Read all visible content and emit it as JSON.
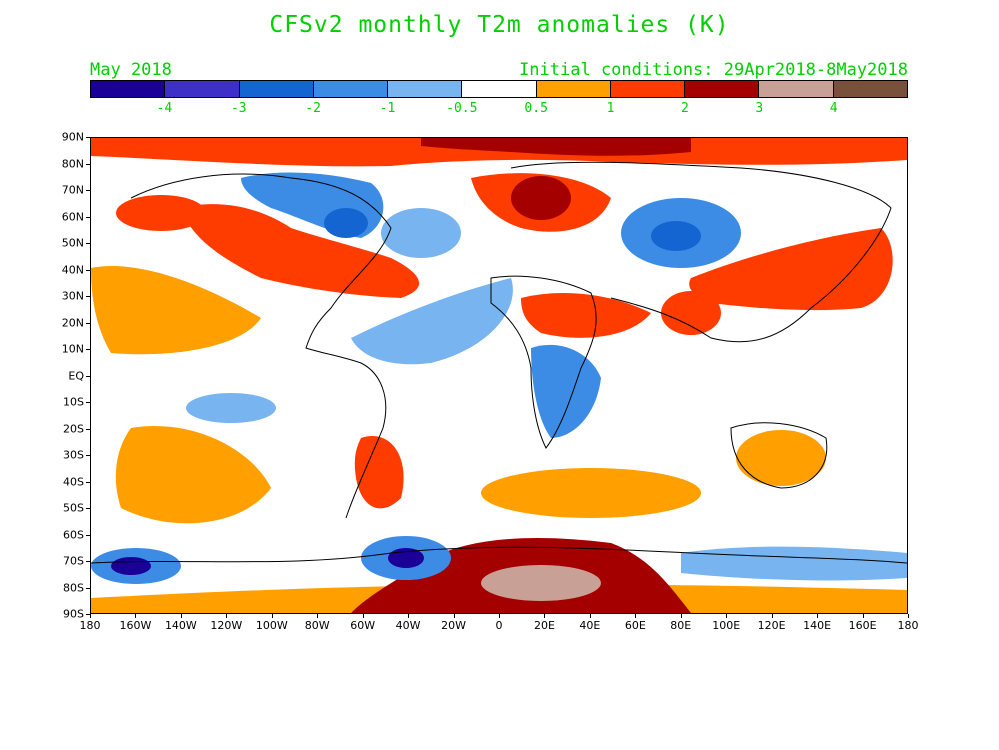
{
  "title": "CFSv2 monthly T2m anomalies (K)",
  "month_label": "May 2018",
  "init_label": "Initial conditions: 29Apr2018-8May2018",
  "colorbar": {
    "colors": [
      "#1a0096",
      "#3c30c8",
      "#1464d2",
      "#3c8ce6",
      "#78b4f0",
      "#ffffff",
      "#ff9f00",
      "#ff3c00",
      "#a50000",
      "#c8a096",
      "#78503c"
    ],
    "labels": [
      "-4",
      "-3",
      "-2",
      "-1",
      "-0.5",
      "0.5",
      "1",
      "2",
      "3",
      "4"
    ]
  },
  "axes": {
    "lat_labels": [
      "90N",
      "80N",
      "70N",
      "60N",
      "50N",
      "40N",
      "30N",
      "20N",
      "10N",
      "EQ",
      "10S",
      "20S",
      "30S",
      "40S",
      "50S",
      "60S",
      "70S",
      "80S",
      "90S"
    ],
    "lon_labels": [
      "180",
      "160W",
      "140W",
      "120W",
      "100W",
      "80W",
      "60W",
      "40W",
      "20W",
      "0",
      "20E",
      "40E",
      "60E",
      "80E",
      "100E",
      "120E",
      "140E",
      "160E",
      "180"
    ]
  }
}
